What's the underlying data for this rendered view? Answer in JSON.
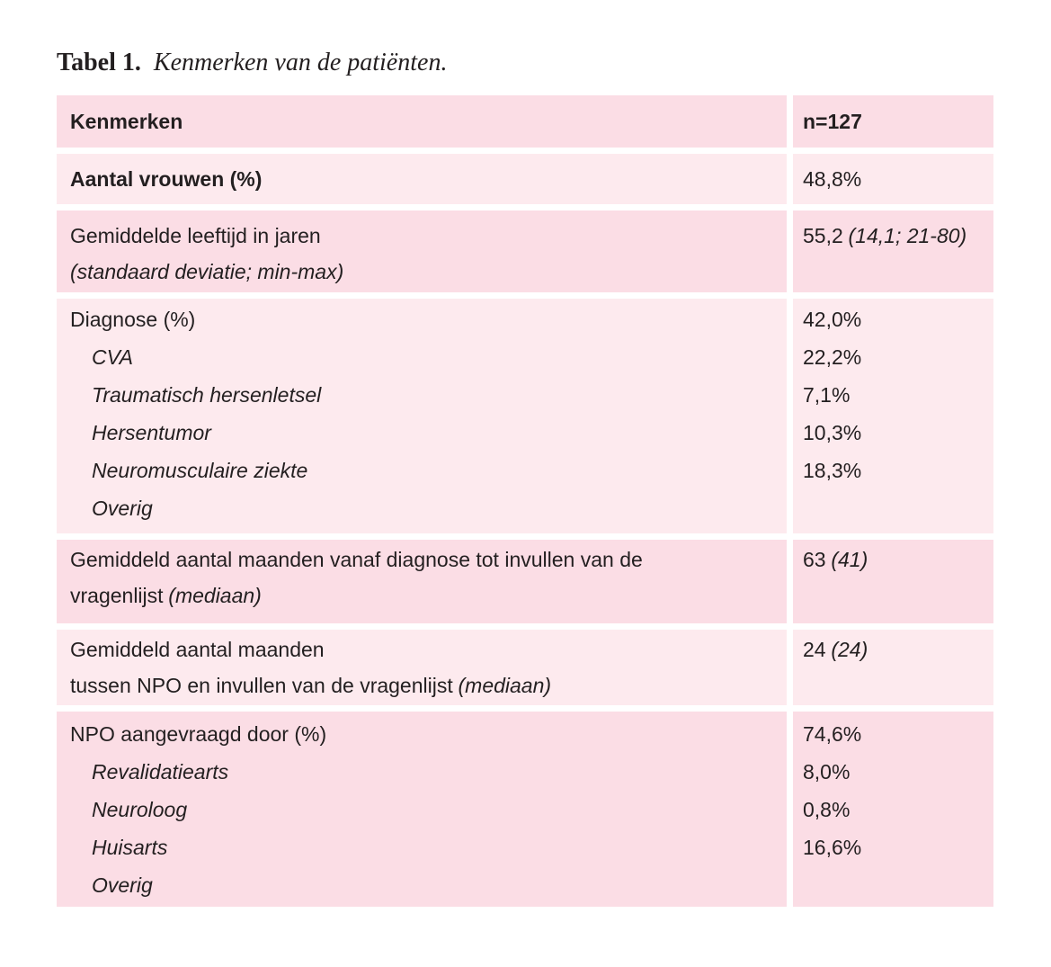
{
  "title": {
    "label": "Tabel 1.",
    "caption": "Kenmerken van de patiënten."
  },
  "colors": {
    "row_dark": "#fbdde5",
    "row_light": "#fdeaee",
    "text": "#231f20",
    "page_bg": "#ffffff"
  },
  "table": {
    "header": {
      "col_kenmerken": "Kenmerken",
      "col_n": "n=127"
    },
    "rows": [
      {
        "label": "Aantal vrouwen (%)",
        "value": "48,8%"
      },
      {
        "line1": "Gemiddelde leeftijd in jaren",
        "line2": "(standaard deviatie; min-max)",
        "value": "55,2",
        "value_note": "(14,1; 21-80)"
      },
      {
        "label": "Diagnose (%)",
        "items": [
          {
            "label": "CVA",
            "value": "42,0%"
          },
          {
            "label": "Traumatisch hersenletsel",
            "value": "22,2%"
          },
          {
            "label": "Hersentumor",
            "value": "7,1%"
          },
          {
            "label": "Neuromusculaire ziekte",
            "value": "10,3%"
          },
          {
            "label": "Overig",
            "value": "18,3%"
          }
        ]
      },
      {
        "line1": "Gemiddeld aantal maanden vanaf diagnose tot invullen van de",
        "line2": "vragenlijst",
        "line2_note": "(mediaan)",
        "value": "63",
        "value_note": "(41)"
      },
      {
        "line1": "Gemiddeld aantal maanden",
        "line2": "tussen NPO en invullen van de vragenlijst",
        "line2_note": "(mediaan)",
        "value": "24",
        "value_note": "(24)"
      },
      {
        "label": "NPO aangevraagd door (%)",
        "items": [
          {
            "label": "Revalidatiearts",
            "value": "74,6%"
          },
          {
            "label": "Neuroloog",
            "value": "8,0%"
          },
          {
            "label": "Huisarts",
            "value": "0,8%"
          },
          {
            "label": "Overig",
            "value": "16,6%"
          }
        ]
      }
    ]
  }
}
